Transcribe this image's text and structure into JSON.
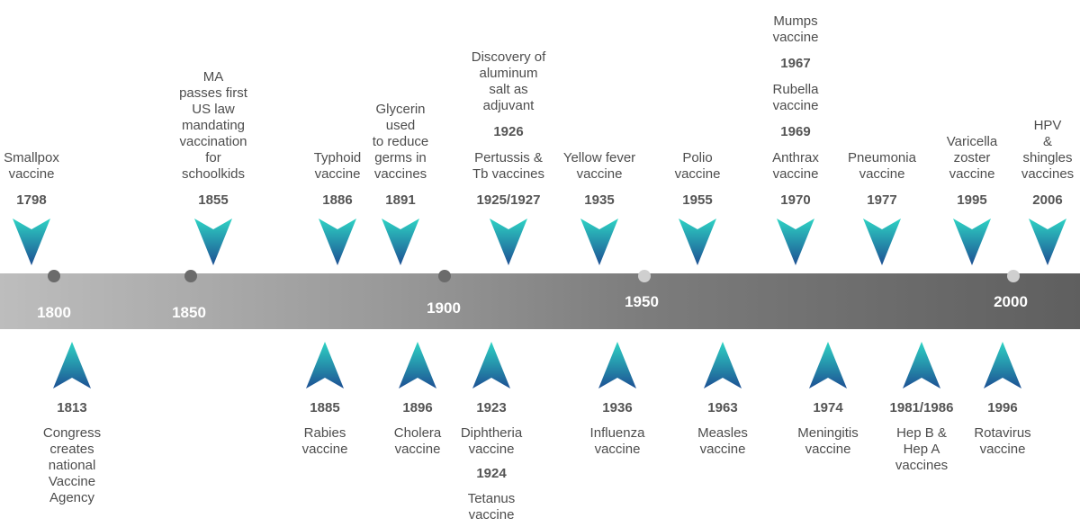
{
  "colors": {
    "arrow_top": "#2ed3c4",
    "arrow_bottom": "#1d4f93",
    "dot_dark": "#6b6b6b",
    "dot_light": "#cfcfcf",
    "band_left": "#bdbdbd",
    "band_right": "#5f5f5f"
  },
  "decades": [
    {
      "label": "1800"
    },
    {
      "label": "1850"
    },
    {
      "label": "1900"
    },
    {
      "label": "1950"
    },
    {
      "label": "2000"
    }
  ],
  "events_top": [
    {
      "year": "1798",
      "desc": "Smallpox\nvaccine"
    },
    {
      "year": "1855",
      "desc": "MA\npasses first\nUS law\nmandating\nvaccination\nfor\nschoolkids"
    },
    {
      "year": "1886",
      "desc": "Typhoid\nvaccine"
    },
    {
      "year": "1891",
      "desc": "Glycerin\nused\nto reduce\ngerms in\nvaccines"
    },
    {
      "extra_desc": "Discovery of\naluminum\nsalt as\nadjuvant",
      "extra_year": "1926",
      "year": "1925/1927",
      "desc": "Pertussis &\nTb vaccines"
    },
    {
      "year": "1935",
      "desc": "Yellow fever\nvaccine"
    },
    {
      "year": "1955",
      "desc": "Polio\nvaccine"
    },
    {
      "extra_desc": "Mumps\nvaccine",
      "extra_year": "1967",
      "extra_desc2": "Rubella\nvaccine",
      "extra_year2": "1969",
      "year": "1970",
      "desc": "Anthrax\nvaccine"
    },
    {
      "year": "1977",
      "desc": "Pneumonia\nvaccine"
    },
    {
      "year": "1995",
      "desc": "Varicella\nzoster\nvaccine"
    },
    {
      "year": "2006",
      "desc": "HPV\n& shingles\nvaccines"
    }
  ],
  "events_bottom": [
    {
      "year": "1813",
      "desc": "Congress\ncreates\nnational\nVaccine\nAgency"
    },
    {
      "year": "1885",
      "desc": "Rabies\nvaccine"
    },
    {
      "year": "1896",
      "desc": "Cholera\nvaccine"
    },
    {
      "year": "1923",
      "desc": "Diphtheria\nvaccine",
      "extra_year": "1924",
      "extra_desc": "Tetanus\nvaccine"
    },
    {
      "year": "1936",
      "desc": "Influenza\nvaccine"
    },
    {
      "year": "1963",
      "desc": "Measles\nvaccine"
    },
    {
      "year": "1974",
      "desc": "Meningitis\nvaccine"
    },
    {
      "year": "1981/1986",
      "desc": "Hep B &\nHep A\nvaccines"
    },
    {
      "year": "1996",
      "desc": "Rotavirus\nvaccine"
    }
  ]
}
